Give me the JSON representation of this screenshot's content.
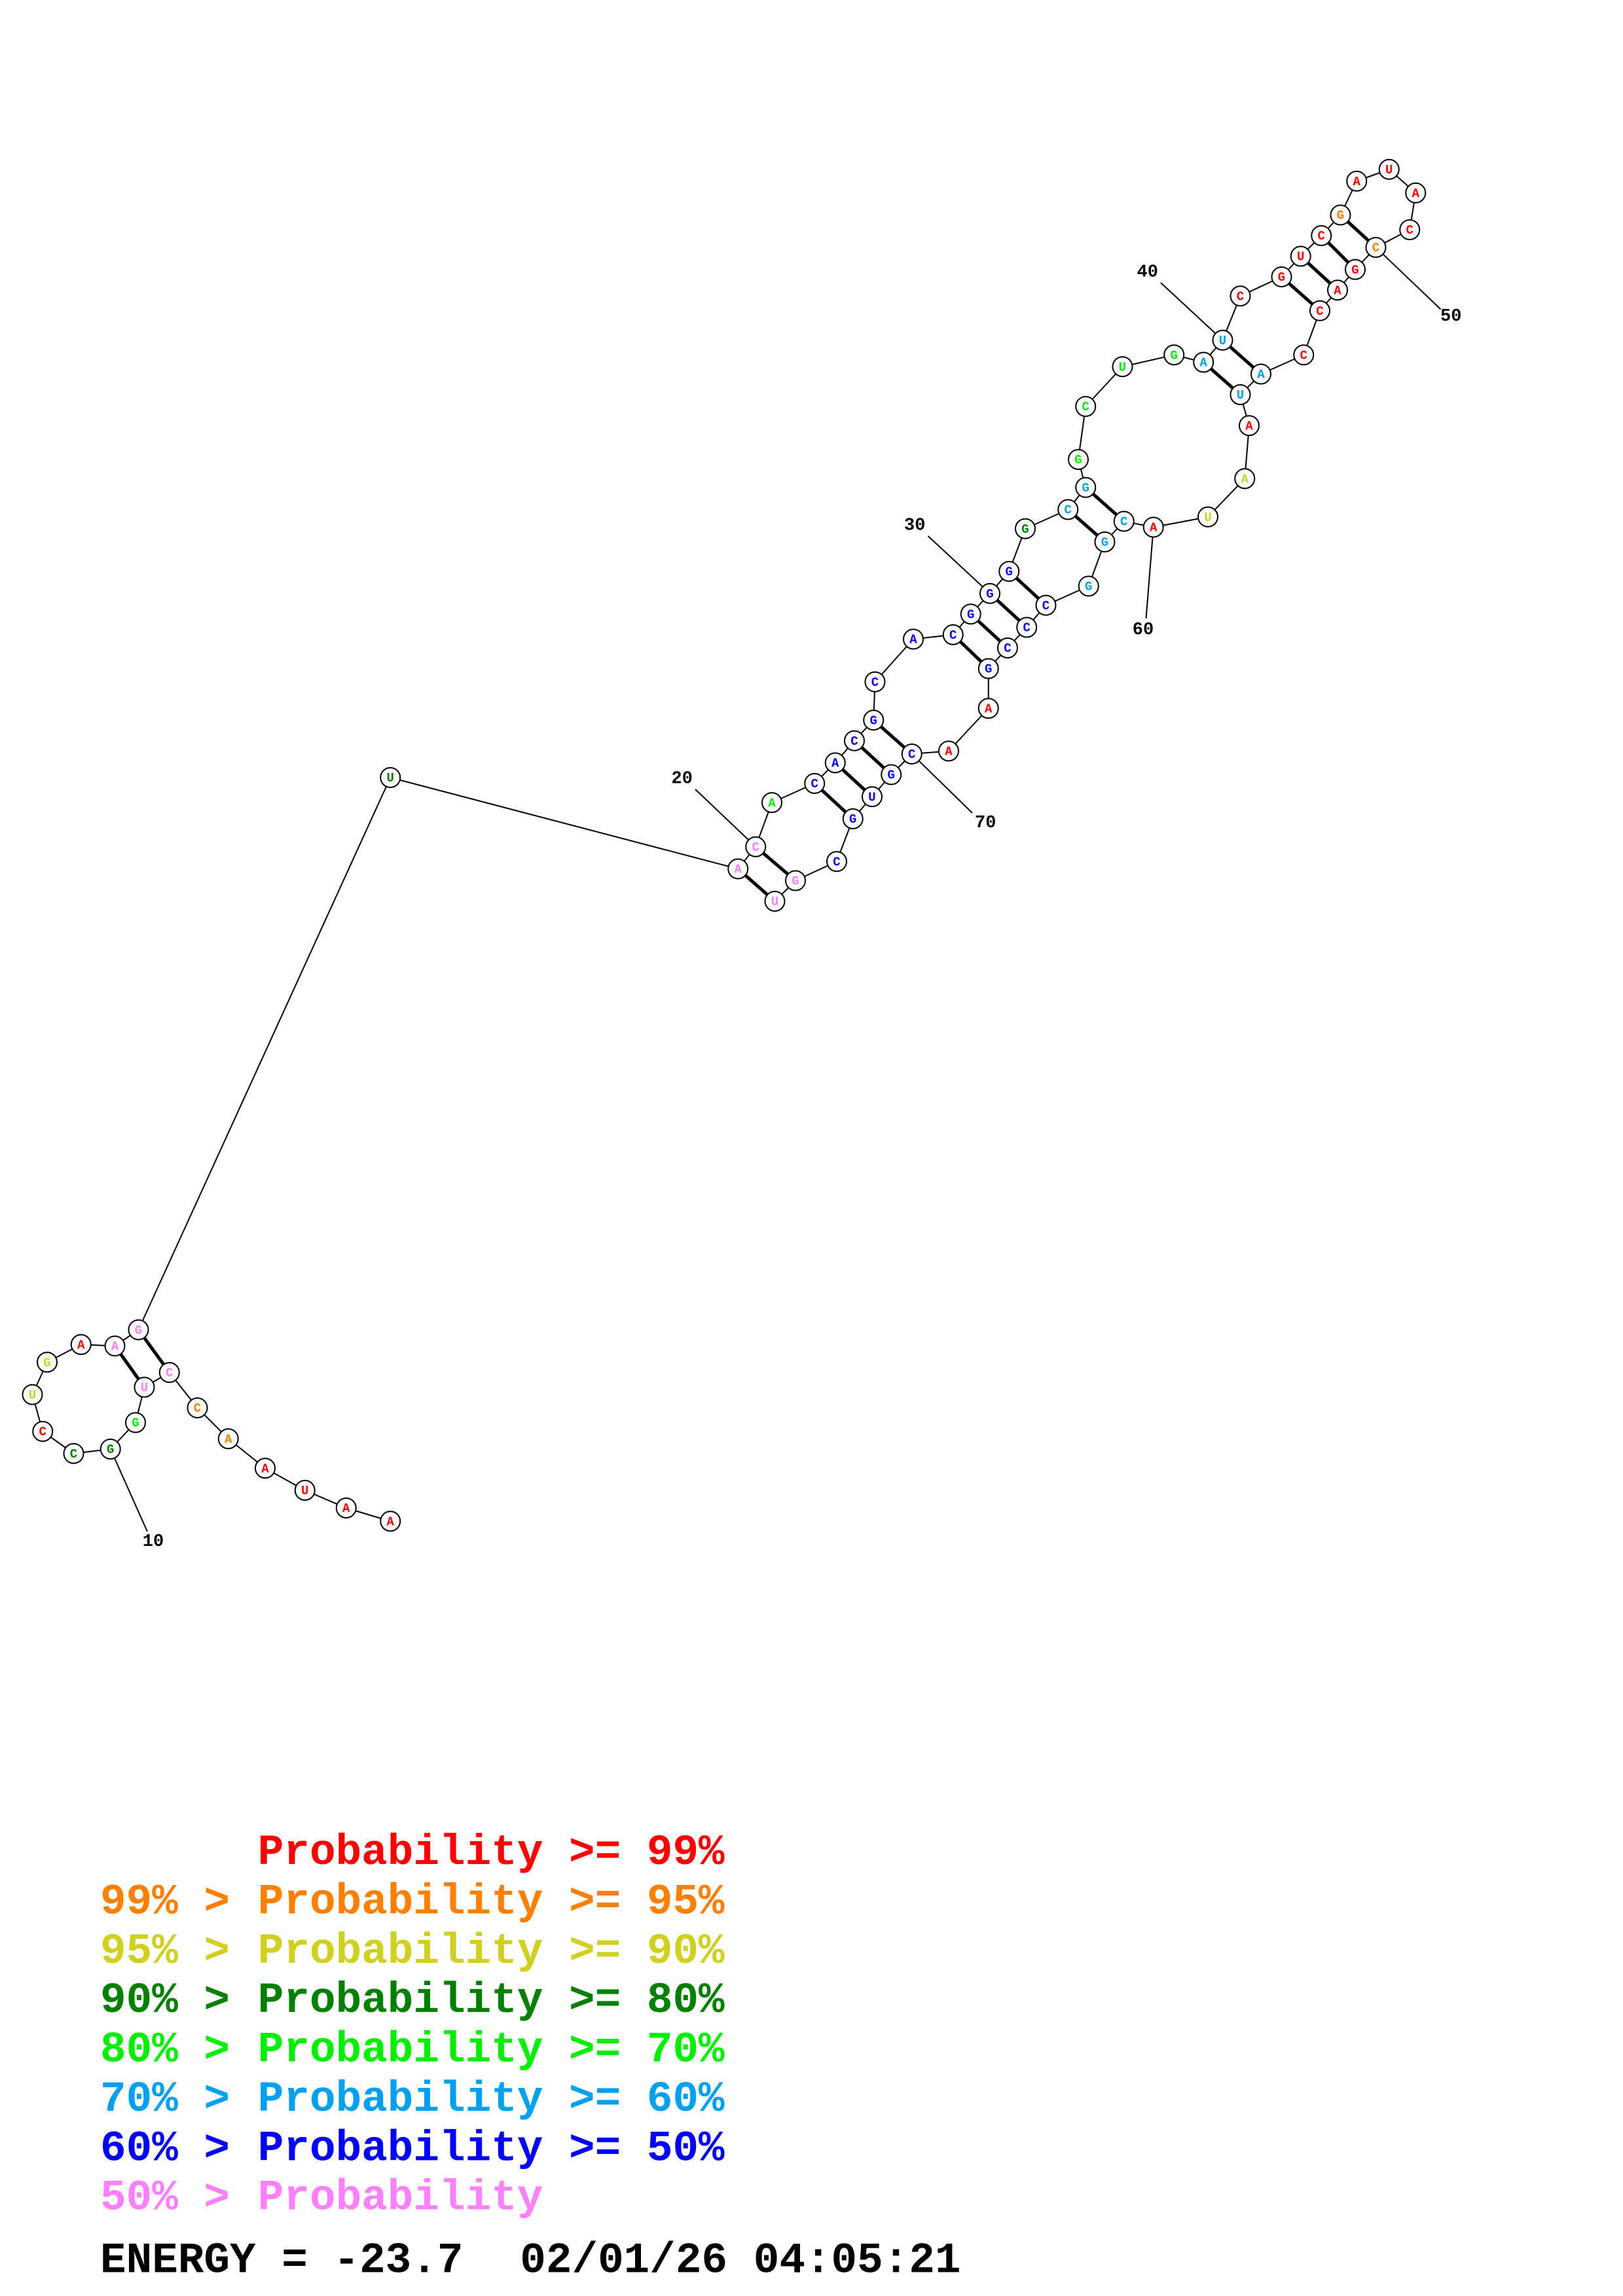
{
  "nucleotides": [
    {
      "base": "A",
      "color": "#ff0000"
    },
    {
      "base": "A",
      "color": "#ff0000"
    },
    {
      "base": "U",
      "color": "#ff0000"
    },
    {
      "base": "A",
      "color": "#ff0000"
    },
    {
      "base": "A",
      "color": "#ff8000"
    },
    {
      "base": "C",
      "color": "#ff8000"
    },
    {
      "base": "C",
      "color": "#ff80ff"
    },
    {
      "base": "U",
      "color": "#ff80ff"
    },
    {
      "base": "G",
      "color": "#00ee00"
    },
    {
      "base": "G",
      "color": "#008000"
    },
    {
      "base": "C",
      "color": "#008000"
    },
    {
      "base": "C",
      "color": "#ff0000"
    },
    {
      "base": "U",
      "color": "#d0d020"
    },
    {
      "base": "G",
      "color": "#d0d020"
    },
    {
      "base": "A",
      "color": "#ff0000"
    },
    {
      "base": "A",
      "color": "#ff80ff"
    },
    {
      "base": "G",
      "color": "#ff80ff"
    },
    {
      "base": "U",
      "color": "#008000"
    },
    {
      "base": "A",
      "color": "#ff80ff"
    },
    {
      "base": "C",
      "color": "#ff80ff"
    },
    {
      "base": "A",
      "color": "#00ee00"
    },
    {
      "base": "C",
      "color": "#0000ff"
    },
    {
      "base": "A",
      "color": "#0000ff"
    },
    {
      "base": "C",
      "color": "#0000ff"
    },
    {
      "base": "G",
      "color": "#0000ff"
    },
    {
      "base": "C",
      "color": "#0000ff"
    },
    {
      "base": "A",
      "color": "#0000ff"
    },
    {
      "base": "C",
      "color": "#0000ff"
    },
    {
      "base": "G",
      "color": "#0000ff"
    },
    {
      "base": "G",
      "color": "#0000ff"
    },
    {
      "base": "G",
      "color": "#0000ff"
    },
    {
      "base": "G",
      "color": "#008000"
    },
    {
      "base": "C",
      "color": "#00a0f0"
    },
    {
      "base": "G",
      "color": "#00a0f0"
    },
    {
      "base": "G",
      "color": "#00ee00"
    },
    {
      "base": "C",
      "color": "#00ee00"
    },
    {
      "base": "U",
      "color": "#00ee00"
    },
    {
      "base": "G",
      "color": "#00ee00"
    },
    {
      "base": "A",
      "color": "#00a0f0"
    },
    {
      "base": "U",
      "color": "#00a0f0"
    },
    {
      "base": "C",
      "color": "#ff0000"
    },
    {
      "base": "G",
      "color": "#ff0000"
    },
    {
      "base": "U",
      "color": "#ff0000"
    },
    {
      "base": "C",
      "color": "#ff0000"
    },
    {
      "base": "G",
      "color": "#ff8000"
    },
    {
      "base": "A",
      "color": "#ff0000"
    },
    {
      "base": "U",
      "color": "#ff0000"
    },
    {
      "base": "A",
      "color": "#ff0000"
    },
    {
      "base": "C",
      "color": "#ff0000"
    },
    {
      "base": "C",
      "color": "#ff8000"
    },
    {
      "base": "G",
      "color": "#ff0000"
    },
    {
      "base": "A",
      "color": "#ff0000"
    },
    {
      "base": "C",
      "color": "#ff0000"
    },
    {
      "base": "C",
      "color": "#ff0000"
    },
    {
      "base": "A",
      "color": "#00a0f0"
    },
    {
      "base": "U",
      "color": "#00a0f0"
    },
    {
      "base": "A",
      "color": "#ff0000"
    },
    {
      "base": "A",
      "color": "#d0d020"
    },
    {
      "base": "U",
      "color": "#d0d020"
    },
    {
      "base": "A",
      "color": "#ff0000"
    },
    {
      "base": "C",
      "color": "#00a0f0"
    },
    {
      "base": "G",
      "color": "#00a0f0"
    },
    {
      "base": "G",
      "color": "#00a0f0"
    },
    {
      "base": "C",
      "color": "#0000ff"
    },
    {
      "base": "C",
      "color": "#0000ff"
    },
    {
      "base": "C",
      "color": "#0000ff"
    },
    {
      "base": "G",
      "color": "#0000ff"
    },
    {
      "base": "A",
      "color": "#ff0000"
    },
    {
      "base": "A",
      "color": "#ff0000"
    },
    {
      "base": "C",
      "color": "#0000ff"
    },
    {
      "base": "G",
      "color": "#0000ff"
    },
    {
      "base": "U",
      "color": "#0000ff"
    },
    {
      "base": "G",
      "color": "#0000ff"
    },
    {
      "base": "C",
      "color": "#0000ff"
    },
    {
      "base": "G",
      "color": "#ff80ff"
    },
    {
      "base": "U",
      "color": "#ff80ff"
    }
  ],
  "index_labels": [
    "10",
    "20",
    "30",
    "40",
    "50",
    "60",
    "70"
  ],
  "legend": [
    {
      "body": "Probability >= 99%",
      "color": "#ff0000"
    },
    {
      "prefix": "99% >",
      "body": "Probability >= 95%",
      "color": "#ff8000"
    },
    {
      "prefix": "95% >",
      "body": "Probability >= 90%",
      "color": "#d0d020"
    },
    {
      "prefix": "90% >",
      "body": "Probability >= 80%",
      "color": "#008000"
    },
    {
      "prefix": "80% >",
      "body": "Probability >= 70%",
      "color": "#00ee00"
    },
    {
      "prefix": "70% >",
      "body": "Probability >= 60%",
      "color": "#00a0f0"
    },
    {
      "prefix": "60% >",
      "body": "Probability >= 50%",
      "color": "#0000ff"
    },
    {
      "prefix": "50% >",
      "body": "Probability",
      "color": "#ff80ff"
    }
  ],
  "energy": "ENERGY = -23.7",
  "timestamp": "02/01/26 04:05:21"
}
